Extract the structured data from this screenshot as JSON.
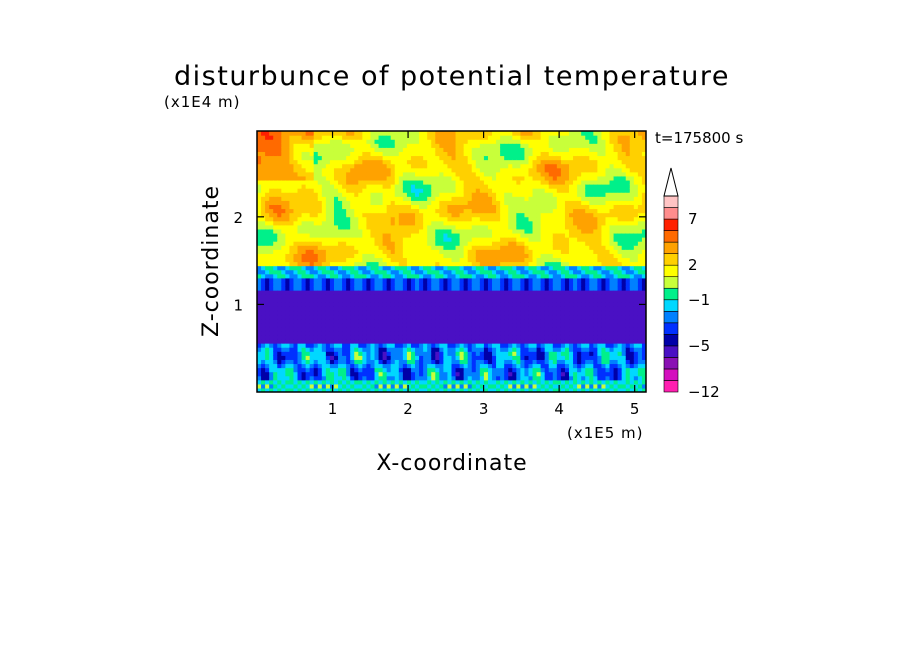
{
  "chart_data": {
    "type": "heatmap",
    "title": "disturbunce of potential temperature",
    "xlabel": "X-coordinate",
    "ylabel": "Z-coordinate",
    "x_scale_label": "(x1E5 m)",
    "y_scale_label": "(x1E4 m)",
    "time_label": "t=175800 s",
    "xlim": [
      0,
      5.15
    ],
    "ylim": [
      0,
      2.98
    ],
    "x_ticks": [
      1,
      2,
      3,
      4,
      5
    ],
    "y_ticks": [
      1,
      2
    ],
    "colorbar": {
      "tick_labels": [
        "7",
        "2",
        "−1",
        "−5",
        "−12"
      ],
      "level_colors": [
        "#ff1fb0",
        "#d40fbe",
        "#8a10b4",
        "#4a10c4",
        "#0000a8",
        "#0030ff",
        "#0080ff",
        "#00d8ff",
        "#00f08a",
        "#c8ff3a",
        "#ffff00",
        "#ffd000",
        "#ffa200",
        "#ff6a00",
        "#ff2000",
        "#ff8d8d",
        "#ffc4c4"
      ],
      "overflow_color": "#ffffff"
    },
    "bands": [
      {
        "z": [
          0,
          0.1
        ],
        "value": -1
      },
      {
        "z": [
          0.1,
          0.55
        ],
        "value": -2.5
      },
      {
        "z": [
          0.55,
          1.15
        ],
        "value": -5
      },
      {
        "z": [
          1.15,
          1.3
        ],
        "value": -3
      },
      {
        "z": [
          1.3,
          1.45
        ],
        "value": -1
      },
      {
        "z": [
          1.45,
          2.98
        ],
        "value": 2
      }
    ]
  }
}
